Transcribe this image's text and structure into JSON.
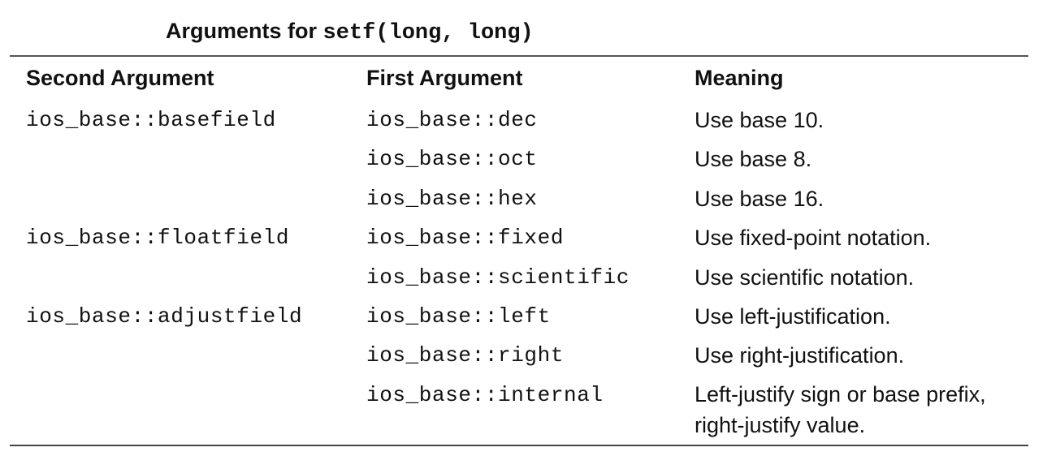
{
  "caption": {
    "prefix": "Arguments for ",
    "code": "setf(long, long)"
  },
  "headers": [
    "Second Argument",
    "First Argument",
    "Meaning"
  ],
  "rows": [
    {
      "second": "ios_base::basefield",
      "first": "ios_base::dec",
      "meaning": "Use base 10."
    },
    {
      "second": "",
      "first": "ios_base::oct",
      "meaning": "Use base 8."
    },
    {
      "second": "",
      "first": "ios_base::hex",
      "meaning": "Use base 16."
    },
    {
      "second": "ios_base::floatfield",
      "first": "ios_base::fixed",
      "meaning": "Use fixed-point notation."
    },
    {
      "second": "",
      "first": "ios_base::scientific",
      "meaning": "Use scientific notation."
    },
    {
      "second": "ios_base::adjustfield",
      "first": "ios_base::left",
      "meaning": "Use left-justification."
    },
    {
      "second": "",
      "first": "ios_base::right",
      "meaning": "Use right-justification."
    },
    {
      "second": "",
      "first": "ios_base::internal",
      "meaning": "Left-justify sign or base prefix, right-justify value."
    }
  ]
}
